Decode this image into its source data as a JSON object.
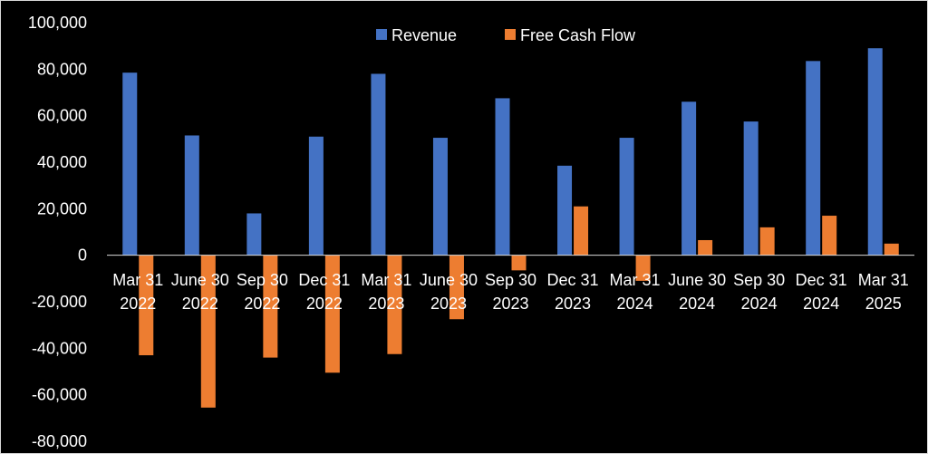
{
  "chart_data": {
    "type": "bar",
    "title": "",
    "xlabel": "",
    "ylabel": "",
    "ylim": [
      -80000,
      100000
    ],
    "yticks": [
      100000,
      80000,
      60000,
      40000,
      20000,
      0,
      -20000,
      -40000,
      -60000,
      -80000
    ],
    "ytick_labels": [
      "100,000",
      "80,000",
      "60,000",
      "40,000",
      "20,000",
      "0",
      "-20,000",
      "-40,000",
      "-60,000",
      "-80,000"
    ],
    "grid": false,
    "legend_position": "top",
    "categories": [
      [
        "Mar 31",
        "2022"
      ],
      [
        "June 30",
        "2022"
      ],
      [
        "Sep 30",
        "2022"
      ],
      [
        "Dec 31",
        "2022"
      ],
      [
        "Mar 31",
        "2023"
      ],
      [
        "June 30",
        "2023"
      ],
      [
        "Sep 30",
        "2023"
      ],
      [
        "Dec 31",
        "2023"
      ],
      [
        "Mar 31",
        "2024"
      ],
      [
        "June 30",
        "2024"
      ],
      [
        "Sep 30",
        "2024"
      ],
      [
        "Dec 31",
        "2024"
      ],
      [
        "Mar 31",
        "2025"
      ]
    ],
    "series": [
      {
        "name": "Revenue",
        "color": "#4472C4",
        "values": [
          78500,
          51500,
          18000,
          51000,
          78000,
          50500,
          67500,
          38500,
          50500,
          66000,
          57500,
          83500,
          89000
        ]
      },
      {
        "name": "Free Cash Flow",
        "color": "#ED7D31",
        "values": [
          -43000,
          -65500,
          -44000,
          -50500,
          -42500,
          -27500,
          -6500,
          21000,
          -11000,
          6500,
          12000,
          17000,
          5000
        ]
      }
    ]
  }
}
